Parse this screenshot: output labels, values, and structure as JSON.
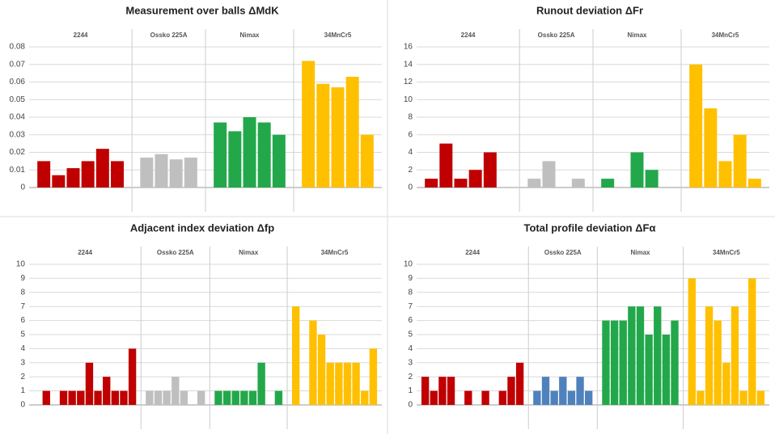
{
  "chart_data": [
    {
      "type": "bar",
      "title": "Measurement over balls  ΔMdK",
      "ylim": [
        0,
        0.08
      ],
      "yticks": [
        0,
        0.01,
        0.02,
        0.03,
        0.04,
        0.05,
        0.06,
        0.07,
        0.08
      ],
      "grid": true,
      "series": [
        {
          "name": "2244",
          "color": "#c00000",
          "values": [
            0.015,
            0.007,
            0.011,
            0.015,
            0.022,
            0.015
          ]
        },
        {
          "name": "Ossko 225A",
          "color": "#bfbfbf",
          "values": [
            0.017,
            0.019,
            0.016,
            0.017
          ]
        },
        {
          "name": "Nimax",
          "color": "#22a84a",
          "values": [
            0.037,
            0.032,
            0.04,
            0.037,
            0.03
          ]
        },
        {
          "name": "34MnCr5",
          "color": "#ffc000",
          "values": [
            0.072,
            0.059,
            0.057,
            0.063,
            0.03
          ]
        }
      ]
    },
    {
      "type": "bar",
      "title": "Runout deviation  ΔFr",
      "ylim": [
        0,
        16
      ],
      "yticks": [
        0,
        2,
        4,
        6,
        8,
        10,
        12,
        14,
        16
      ],
      "grid": true,
      "series": [
        {
          "name": "2244",
          "color": "#c00000",
          "values": [
            1,
            5,
            1,
            2,
            4,
            0
          ]
        },
        {
          "name": "Ossko 225A",
          "color": "#bfbfbf",
          "values": [
            1,
            3,
            0,
            1
          ]
        },
        {
          "name": "Nimax",
          "color": "#22a84a",
          "values": [
            1,
            0,
            4,
            2,
            0
          ]
        },
        {
          "name": "34MnCr5",
          "color": "#ffc000",
          "values": [
            14,
            9,
            3,
            6,
            1
          ]
        }
      ]
    },
    {
      "type": "bar",
      "title": "Adjacent index deviation  Δfp",
      "ylim": [
        0,
        10
      ],
      "yticks": [
        0,
        1,
        2,
        3,
        4,
        5,
        6,
        7,
        8,
        9,
        10
      ],
      "grid": true,
      "series": [
        {
          "name": "2244",
          "color": "#c00000",
          "values": [
            0,
            1,
            0,
            1,
            1,
            1,
            3,
            1,
            2,
            1,
            1,
            4
          ]
        },
        {
          "name": "Ossko 225A",
          "color": "#bfbfbf",
          "values": [
            1,
            1,
            1,
            2,
            1,
            0,
            1
          ]
        },
        {
          "name": "Nimax",
          "color": "#22a84a",
          "values": [
            1,
            1,
            1,
            1,
            1,
            3,
            0,
            1
          ]
        },
        {
          "name": "34MnCr5",
          "color": "#ffc000",
          "values": [
            7,
            0,
            6,
            5,
            3,
            3,
            3,
            3,
            1,
            4
          ]
        }
      ]
    },
    {
      "type": "bar",
      "title": "Total profile deviation  ΔFα",
      "ylim": [
        0,
        10
      ],
      "yticks": [
        0,
        1,
        2,
        3,
        4,
        5,
        6,
        7,
        8,
        9,
        10
      ],
      "grid": true,
      "series": [
        {
          "name": "2244",
          "color": "#c00000",
          "values": [
            2,
            1,
            2,
            2,
            0,
            1,
            0,
            1,
            0,
            1,
            2,
            3
          ]
        },
        {
          "name": "Ossko 225A",
          "color": "#4f81bd",
          "values": [
            1,
            2,
            1,
            2,
            1,
            2,
            1
          ]
        },
        {
          "name": "Nimax",
          "color": "#22a84a",
          "values": [
            6,
            6,
            6,
            7,
            7,
            5,
            7,
            5,
            6
          ]
        },
        {
          "name": "34MnCr5",
          "color": "#ffc000",
          "values": [
            9,
            1,
            7,
            6,
            3,
            7,
            1,
            9,
            1
          ]
        }
      ]
    }
  ]
}
